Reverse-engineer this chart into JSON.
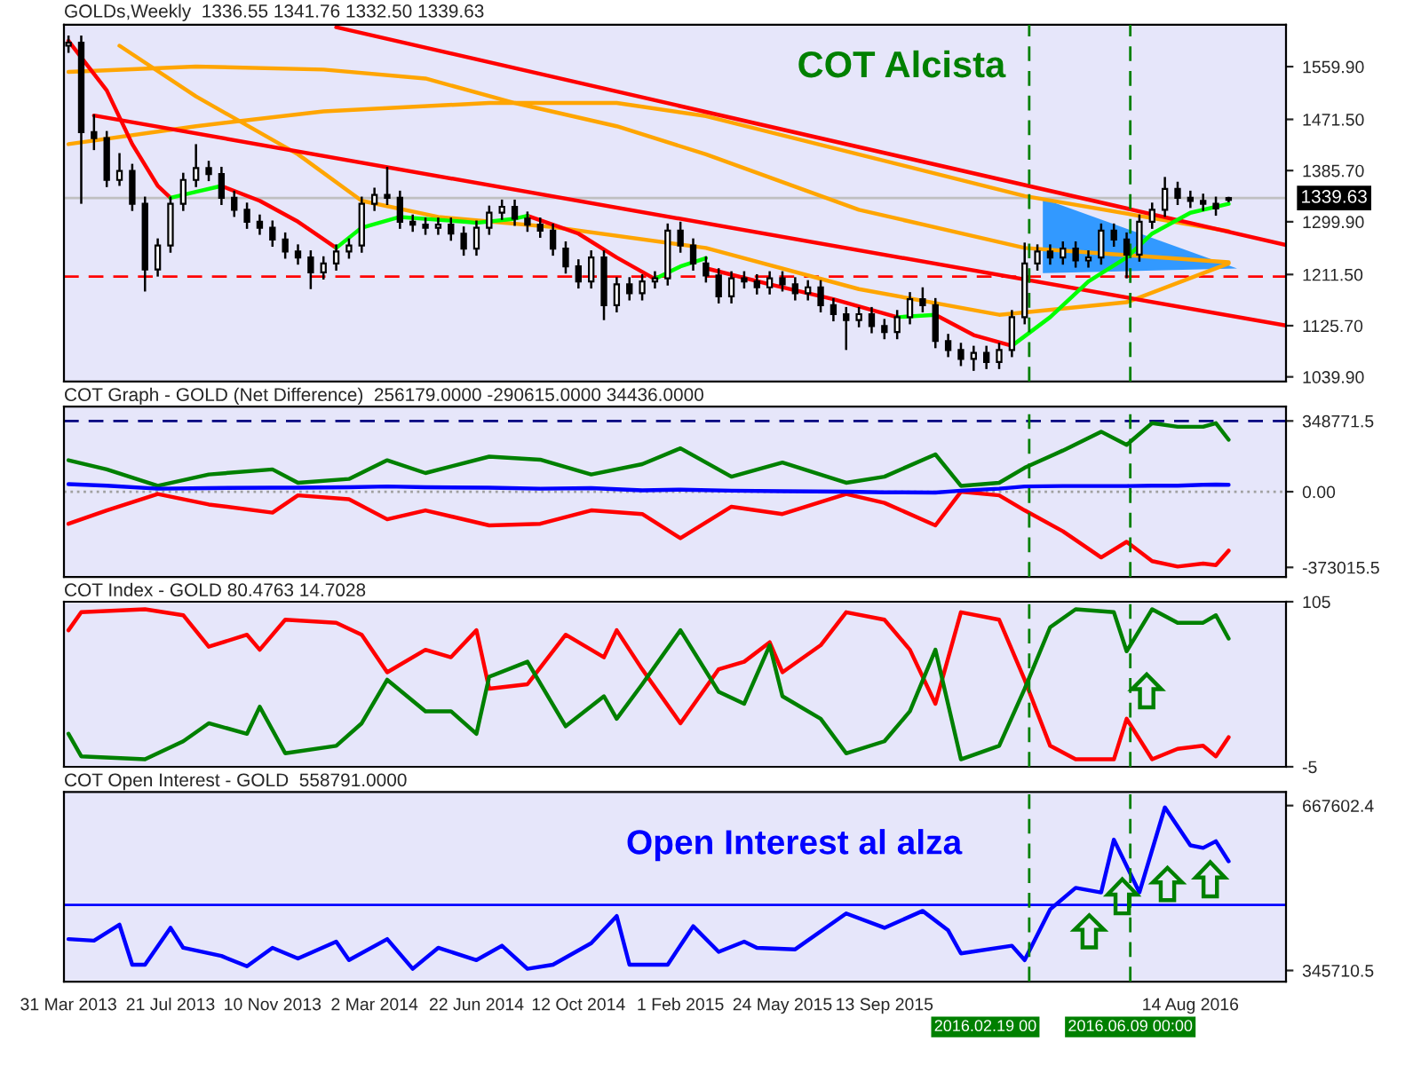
{
  "chart_data": [
    {
      "type": "candlestick",
      "title": "GOLDs,Weekly  1336.55 1341.76 1332.50 1339.63",
      "annotations": [
        "COT Alcista"
      ],
      "tick_labels": "y",
      "xlim": [
        "2013-03-26",
        "2016-11-27"
      ],
      "ylim": [
        1032,
        1630
      ],
      "yticks": [
        {
          "value": 1039.9,
          "label": "1039.90"
        },
        {
          "value": 1125.7,
          "label": "1125.70"
        },
        {
          "value": 1211.5,
          "label": "1211.50"
        },
        {
          "value": 1299.9,
          "label": "1299.90"
        },
        {
          "value": 1385.7,
          "label": "1385.70"
        },
        {
          "value": 1471.5,
          "label": "1471.50"
        },
        {
          "value": 1559.9,
          "label": "1559.90"
        }
      ],
      "x": [
        "2013-03-31",
        "2013-04-14",
        "2013-04-28",
        "2013-05-12",
        "2013-05-26",
        "2013-06-09",
        "2013-06-23",
        "2013-07-07",
        "2013-07-21",
        "2013-08-04",
        "2013-08-18",
        "2013-09-01",
        "2013-09-15",
        "2013-09-29",
        "2013-10-13",
        "2013-10-27",
        "2013-11-10",
        "2013-11-24",
        "2013-12-08",
        "2013-12-22",
        "2014-01-05",
        "2014-01-19",
        "2014-02-02",
        "2014-02-16",
        "2014-03-02",
        "2014-03-16",
        "2014-03-30",
        "2014-04-13",
        "2014-04-27",
        "2014-05-11",
        "2014-05-25",
        "2014-06-08",
        "2014-06-22",
        "2014-07-06",
        "2014-07-20",
        "2014-08-03",
        "2014-08-17",
        "2014-08-31",
        "2014-09-14",
        "2014-09-28",
        "2014-10-12",
        "2014-10-26",
        "2014-11-09",
        "2014-11-23",
        "2014-12-07",
        "2014-12-21",
        "2015-01-04",
        "2015-01-18",
        "2015-02-01",
        "2015-02-15",
        "2015-03-01",
        "2015-03-15",
        "2015-03-29",
        "2015-04-12",
        "2015-04-26",
        "2015-05-10",
        "2015-05-24",
        "2015-06-07",
        "2015-06-21",
        "2015-07-05",
        "2015-07-19",
        "2015-08-02",
        "2015-08-16",
        "2015-08-30",
        "2015-09-13",
        "2015-09-27",
        "2015-10-11",
        "2015-10-25",
        "2015-11-08",
        "2015-11-22",
        "2015-12-06",
        "2015-12-20",
        "2016-01-03",
        "2016-01-17",
        "2016-01-31",
        "2016-02-14",
        "2016-02-28",
        "2016-03-13",
        "2016-03-27",
        "2016-04-10",
        "2016-04-24",
        "2016-05-08",
        "2016-05-22",
        "2016-06-05",
        "2016-06-19",
        "2016-07-03",
        "2016-07-17",
        "2016-07-31",
        "2016-08-14",
        "2016-08-28",
        "2016-09-11",
        "2016-09-25"
      ],
      "ohlc": [
        [
          1595,
          1612,
          1583,
          1600
        ],
        [
          1600,
          1612,
          1330,
          1450
        ],
        [
          1450,
          1480,
          1420,
          1440
        ],
        [
          1440,
          1452,
          1358,
          1370
        ],
        [
          1370,
          1415,
          1360,
          1385
        ],
        [
          1385,
          1397,
          1318,
          1330
        ],
        [
          1330,
          1342,
          1183,
          1220
        ],
        [
          1220,
          1272,
          1208,
          1260
        ],
        [
          1260,
          1342,
          1248,
          1330
        ],
        [
          1330,
          1382,
          1318,
          1370
        ],
        [
          1370,
          1430,
          1358,
          1390
        ],
        [
          1390,
          1402,
          1368,
          1380
        ],
        [
          1380,
          1392,
          1328,
          1340
        ],
        [
          1340,
          1352,
          1308,
          1320
        ],
        [
          1320,
          1332,
          1288,
          1300
        ],
        [
          1300,
          1312,
          1278,
          1290
        ],
        [
          1290,
          1302,
          1258,
          1270
        ],
        [
          1270,
          1282,
          1238,
          1250
        ],
        [
          1250,
          1262,
          1228,
          1240
        ],
        [
          1240,
          1252,
          1187,
          1215
        ],
        [
          1215,
          1242,
          1203,
          1230
        ],
        [
          1230,
          1262,
          1218,
          1250
        ],
        [
          1250,
          1272,
          1238,
          1260
        ],
        [
          1260,
          1342,
          1248,
          1330
        ],
        [
          1330,
          1357,
          1318,
          1345
        ],
        [
          1345,
          1392,
          1328,
          1340
        ],
        [
          1340,
          1352,
          1288,
          1300
        ],
        [
          1300,
          1312,
          1283,
          1295
        ],
        [
          1295,
          1307,
          1278,
          1290
        ],
        [
          1290,
          1307,
          1278,
          1295
        ],
        [
          1295,
          1307,
          1268,
          1280
        ],
        [
          1280,
          1292,
          1243,
          1255
        ],
        [
          1255,
          1302,
          1243,
          1290
        ],
        [
          1290,
          1327,
          1278,
          1315
        ],
        [
          1315,
          1337,
          1303,
          1325
        ],
        [
          1325,
          1337,
          1293,
          1305
        ],
        [
          1305,
          1317,
          1283,
          1295
        ],
        [
          1295,
          1307,
          1273,
          1285
        ],
        [
          1285,
          1297,
          1243,
          1255
        ],
        [
          1255,
          1267,
          1213,
          1225
        ],
        [
          1225,
          1237,
          1188,
          1200
        ],
        [
          1200,
          1252,
          1188,
          1240
        ],
        [
          1240,
          1252,
          1135,
          1160
        ],
        [
          1160,
          1207,
          1148,
          1195
        ],
        [
          1195,
          1207,
          1168,
          1180
        ],
        [
          1180,
          1212,
          1168,
          1200
        ],
        [
          1200,
          1217,
          1188,
          1205
        ],
        [
          1205,
          1297,
          1193,
          1285
        ],
        [
          1285,
          1300,
          1248,
          1260
        ],
        [
          1260,
          1272,
          1218,
          1230
        ],
        [
          1230,
          1242,
          1198,
          1210
        ],
        [
          1210,
          1222,
          1163,
          1175
        ],
        [
          1175,
          1217,
          1163,
          1205
        ],
        [
          1205,
          1217,
          1188,
          1200
        ],
        [
          1200,
          1212,
          1178,
          1190
        ],
        [
          1190,
          1217,
          1178,
          1205
        ],
        [
          1205,
          1217,
          1183,
          1195
        ],
        [
          1195,
          1207,
          1168,
          1180
        ],
        [
          1180,
          1202,
          1168,
          1190
        ],
        [
          1190,
          1202,
          1148,
          1160
        ],
        [
          1160,
          1172,
          1133,
          1145
        ],
        [
          1145,
          1157,
          1085,
          1135
        ],
        [
          1135,
          1157,
          1123,
          1145
        ],
        [
          1145,
          1157,
          1113,
          1125
        ],
        [
          1125,
          1137,
          1103,
          1115
        ],
        [
          1115,
          1152,
          1103,
          1140
        ],
        [
          1140,
          1182,
          1128,
          1170
        ],
        [
          1170,
          1190,
          1148,
          1160
        ],
        [
          1160,
          1172,
          1088,
          1100
        ],
        [
          1100,
          1112,
          1073,
          1085
        ],
        [
          1085,
          1097,
          1058,
          1070
        ],
        [
          1070,
          1092,
          1050,
          1080
        ],
        [
          1080,
          1092,
          1053,
          1065
        ],
        [
          1065,
          1097,
          1053,
          1085
        ],
        [
          1085,
          1152,
          1073,
          1140
        ],
        [
          1140,
          1265,
          1128,
          1230
        ],
        [
          1230,
          1262,
          1218,
          1250
        ],
        [
          1250,
          1262,
          1228,
          1240
        ],
        [
          1240,
          1267,
          1228,
          1255
        ],
        [
          1255,
          1267,
          1223,
          1235
        ],
        [
          1235,
          1252,
          1223,
          1240
        ],
        [
          1240,
          1297,
          1228,
          1285
        ],
        [
          1285,
          1297,
          1258,
          1270
        ],
        [
          1270,
          1282,
          1205,
          1245
        ],
        [
          1245,
          1312,
          1233,
          1300
        ],
        [
          1300,
          1332,
          1288,
          1320
        ],
        [
          1320,
          1375,
          1308,
          1355
        ],
        [
          1355,
          1367,
          1328,
          1340
        ],
        [
          1340,
          1352,
          1323,
          1335
        ],
        [
          1335,
          1347,
          1318,
          1330
        ],
        [
          1330,
          1342,
          1310,
          1322
        ],
        [
          1336.55,
          1341.76,
          1332.5,
          1339.63
        ]
      ],
      "series": [
        {
          "type": "line",
          "color": "#ffa500",
          "x": [
            "2013-03-31",
            "2013-08-18",
            "2014-01-05",
            "2014-04-27",
            "2014-08-03",
            "2014-11-23",
            "2015-03-01",
            "2015-08-16",
            "2016-02-14",
            "2016-09-25"
          ],
          "values": [
            1551,
            1560,
            1555,
            1540,
            1499,
            1460,
            1413,
            1320,
            1256,
            1232
          ]
        },
        {
          "type": "line",
          "color": "#ffa500",
          "x": [
            "2013-03-31",
            "2013-08-18",
            "2014-01-05",
            "2014-07-06",
            "2014-11-23",
            "2015-03-01",
            "2016-02-14",
            "2016-09-25"
          ],
          "values": [
            1430,
            1460,
            1485,
            1499,
            1499,
            1477,
            1343,
            1284
          ]
        },
        {
          "type": "line",
          "color": "#ffa500",
          "x": [
            "2013-05-26",
            "2013-08-18",
            "2013-12-08",
            "2014-02-16",
            "2014-05-11",
            "2014-09-14",
            "2015-03-01",
            "2015-08-16",
            "2016-01-17",
            "2016-02-14",
            "2016-06-05",
            "2016-09-25"
          ],
          "values": [
            1595,
            1510,
            1413,
            1335,
            1308,
            1291,
            1256,
            1187,
            1144,
            1148,
            1165,
            1230
          ]
        },
        {
          "type": "line",
          "color": "#ff0000",
          "x": [
            "2014-01-19",
            "2016-11-27"
          ],
          "values": [
            1626,
            1261
          ]
        },
        {
          "type": "line",
          "color": "#ff0000",
          "x": [
            "2013-04-28",
            "2016-11-27"
          ],
          "values": [
            1478,
            1126
          ]
        },
        {
          "type": "line",
          "color": "#ff0000",
          "x": [
            "2013-03-31",
            "2013-05-12",
            "2013-06-09",
            "2013-07-07",
            "2013-07-21",
            "2013-08-04",
            "2013-09-15",
            "2013-10-27",
            "2013-12-08",
            "2014-01-19",
            "2014-02-02",
            "2014-08-17",
            "2014-10-12",
            "2014-11-23",
            "2015-01-04",
            "2015-01-18",
            "2015-03-01",
            "2015-05-10",
            "2015-07-19",
            "2015-09-27",
            "2015-10-11",
            "2015-11-08",
            "2015-12-20",
            "2016-01-31"
          ],
          "values": [
            1603,
            1520,
            1430,
            1360,
            1340,
            null,
            1360,
            1335,
            1300,
            1256,
            null,
            1310,
            1280,
            1240,
            1204,
            null,
            1222,
            1195,
            1170,
            1140,
            null,
            1144,
            1110,
            1092
          ]
        },
        {
          "type": "line",
          "color": "#00ff00",
          "x": [
            "2013-07-21",
            "2013-08-18",
            "2013-09-15",
            "2013-09-29",
            "2014-01-19",
            "2014-02-16",
            "2014-03-30",
            "2014-06-08",
            "2014-06-22",
            "2014-08-03",
            "2014-08-17",
            "2014-08-31",
            "2015-01-04",
            "2015-02-01",
            "2015-03-01",
            "2015-03-15",
            "2015-09-27",
            "2015-11-08",
            "2015-11-22",
            "2016-01-31",
            "2016-03-13",
            "2016-04-24",
            "2016-06-05",
            "2016-07-03",
            "2016-08-14",
            "2016-09-25"
          ],
          "values": [
            1340,
            1350,
            1360,
            null,
            1256,
            1290,
            1308,
            1300,
            1298,
            1305,
            1310,
            null,
            1204,
            1225,
            1239,
            null,
            1140,
            1144,
            null,
            1092,
            1140,
            1200,
            1240,
            1280,
            1315,
            1330
          ]
        }
      ],
      "ref_lines": [
        {
          "axis": "y",
          "value": 1208,
          "color": "#ff0000",
          "line_style": "dashed"
        },
        {
          "axis": "y",
          "value": 1339.63,
          "label": "1339.63",
          "color": "#c0c0c0"
        },
        {
          "axis": "x",
          "value": "2016-02-19",
          "color": "#008000",
          "line_style": "dashed"
        },
        {
          "axis": "x",
          "value": "2016-06-09",
          "color": "#008000",
          "line_style": "dashed"
        }
      ]
    },
    {
      "type": "line",
      "title": "COT Graph - GOLD (Net Difference)  256179.0000 -290615.0000 34436.0000",
      "tick_labels": "y",
      "xlim": [
        "2013-03-26",
        "2016-11-27"
      ],
      "ylim": [
        -420000,
        420000
      ],
      "yticks": [
        {
          "value": 348771.5,
          "label": "348771.5"
        },
        {
          "value": 0,
          "label": "0.00"
        },
        {
          "value": -373015.5,
          "label": "-373015.5"
        }
      ],
      "x": [
        "2013-03-31",
        "2013-05-12",
        "2013-07-07",
        "2013-09-01",
        "2013-11-10",
        "2013-12-08",
        "2014-02-02",
        "2014-03-16",
        "2014-04-27",
        "2014-07-06",
        "2014-08-31",
        "2014-10-26",
        "2014-12-21",
        "2015-02-01",
        "2015-03-29",
        "2015-05-24",
        "2015-08-02",
        "2015-09-13",
        "2015-11-08",
        "2015-12-06",
        "2016-01-17",
        "2016-02-14",
        "2016-03-27",
        "2016-05-08",
        "2016-06-05",
        "2016-07-03",
        "2016-07-31",
        "2016-08-28",
        "2016-09-11",
        "2016-09-25"
      ],
      "series": [
        {
          "color": "#008000",
          "values": [
            155000,
            110000,
            29000,
            85000,
            110000,
            44000,
            63000,
            155000,
            92000,
            173000,
            158000,
            85000,
            136000,
            214000,
            74000,
            144000,
            44000,
            74000,
            184000,
            29000,
            44000,
            118000,
            203000,
            296000,
            231000,
            338000,
            320000,
            320000,
            338000,
            256179
          ]
        },
        {
          "color": "#ff0000",
          "values": [
            -158000,
            -92000,
            -11000,
            -63000,
            -103000,
            -18000,
            -37000,
            -136000,
            -92000,
            -166000,
            -158000,
            -92000,
            -110000,
            -229000,
            -74000,
            -110000,
            -11000,
            -55000,
            -166000,
            0,
            -18000,
            -92000,
            -195000,
            -324000,
            -247000,
            -342000,
            -369000,
            -354000,
            -362000,
            -290615
          ]
        },
        {
          "color": "#0000ff",
          "values": [
            37000,
            30000,
            15000,
            18000,
            20000,
            20000,
            22000,
            26000,
            22000,
            20000,
            15000,
            18000,
            7000,
            10000,
            5000,
            2000,
            0,
            -3000,
            -4000,
            5000,
            15000,
            26000,
            28000,
            28000,
            28000,
            30000,
            30000,
            34000,
            35000,
            34436
          ]
        }
      ],
      "ref_lines": [
        {
          "axis": "y",
          "value": 348771.5,
          "color": "#000080",
          "line_style": "dashed"
        },
        {
          "axis": "y",
          "value": 0,
          "color": "#a0a0a0",
          "line_style": "dotted"
        },
        {
          "axis": "x",
          "value": "2016-02-19",
          "color": "#008000",
          "line_style": "dashed"
        },
        {
          "axis": "x",
          "value": "2016-06-09",
          "color": "#008000",
          "line_style": "dashed"
        }
      ]
    },
    {
      "type": "line",
      "title": "COT Index - GOLD 80.4763 14.7028",
      "tick_labels": "y",
      "xlim": [
        "2013-03-26",
        "2016-11-27"
      ],
      "ylim": [
        -5,
        105
      ],
      "yticks": [
        105,
        -5
      ],
      "x": [
        "2013-03-31",
        "2013-04-14",
        "2013-06-23",
        "2013-08-04",
        "2013-09-01",
        "2013-10-13",
        "2013-10-27",
        "2013-11-24",
        "2014-01-19",
        "2014-02-16",
        "2014-03-16",
        "2014-04-27",
        "2014-05-25",
        "2014-06-22",
        "2014-07-06",
        "2014-08-17",
        "2014-09-28",
        "2014-11-09",
        "2014-11-23",
        "2014-12-21",
        "2015-02-01",
        "2015-03-15",
        "2015-04-12",
        "2015-05-10",
        "2015-05-24",
        "2015-07-05",
        "2015-08-02",
        "2015-09-13",
        "2015-10-11",
        "2015-11-08",
        "2015-12-06",
        "2016-01-17",
        "2016-02-14",
        "2016-03-13",
        "2016-04-10",
        "2016-05-22",
        "2016-06-05",
        "2016-07-03",
        "2016-07-31",
        "2016-08-28",
        "2016-09-11",
        "2016-09-25"
      ],
      "series": [
        {
          "color": "#ff0000",
          "values": [
            86,
            98,
            100,
            96,
            75,
            83,
            73,
            93,
            91,
            83,
            58,
            73,
            68,
            86,
            47,
            50,
            83,
            68,
            86,
            60,
            24,
            60,
            65,
            78,
            58,
            76,
            98,
            93,
            73,
            37,
            98,
            93,
            53,
            9,
            0,
            0,
            27,
            0,
            7,
            9,
            2,
            14.7028
          ]
        },
        {
          "color": "#008000",
          "values": [
            17,
            2,
            0,
            12,
            24,
            17,
            35,
            4,
            9,
            24,
            53,
            32,
            32,
            17,
            55,
            65,
            22,
            42,
            27,
            50,
            86,
            45,
            37,
            76,
            42,
            27,
            4,
            12,
            32,
            73,
            0,
            9,
            47,
            88,
            100,
            98,
            72,
            100,
            91,
            91,
            96,
            80.4763
          ]
        }
      ],
      "ref_lines": [
        {
          "axis": "x",
          "value": "2016-02-19",
          "color": "#008000",
          "line_style": "dashed"
        },
        {
          "axis": "x",
          "value": "2016-06-09",
          "color": "#008000",
          "line_style": "dashed"
        }
      ]
    },
    {
      "type": "line",
      "title": "COT Open Interest - GOLD  558791.0000",
      "annotations": [
        "Open Interest al alza"
      ],
      "xlim": [
        "2013-03-26",
        "2016-11-27"
      ],
      "ylim": [
        324000,
        694000
      ],
      "yticks": [
        {
          "value": 667602.4,
          "label": "667602.4"
        },
        {
          "value": 345710.5,
          "label": "345710.5"
        }
      ],
      "xticks": [
        {
          "value": "2013-03-31",
          "label": "31 Mar 2013"
        },
        {
          "value": "2013-07-21",
          "label": "21 Jul 2013"
        },
        {
          "value": "2013-11-10",
          "label": "10 Nov 2013"
        },
        {
          "value": "2014-03-02",
          "label": "2 Mar 2014"
        },
        {
          "value": "2014-06-22",
          "label": "22 Jun 2014"
        },
        {
          "value": "2014-10-12",
          "label": "12 Oct 2014"
        },
        {
          "value": "2015-02-01",
          "label": "1 Feb 2015"
        },
        {
          "value": "2015-05-24",
          "label": "24 May 2015"
        },
        {
          "value": "2015-09-13",
          "label": "13 Sep 2015"
        },
        {
          "value": "2016-08-14",
          "label": "14 Aug 2016"
        }
      ],
      "x": [
        "2013-03-31",
        "2013-04-28",
        "2013-05-26",
        "2013-06-09",
        "2013-06-23",
        "2013-07-21",
        "2013-08-04",
        "2013-09-15",
        "2013-10-13",
        "2013-11-10",
        "2013-12-08",
        "2014-01-19",
        "2014-02-02",
        "2014-03-16",
        "2014-04-13",
        "2014-05-11",
        "2014-06-22",
        "2014-07-20",
        "2014-08-17",
        "2014-09-14",
        "2014-10-26",
        "2014-11-23",
        "2014-12-07",
        "2015-01-18",
        "2015-02-15",
        "2015-03-15",
        "2015-04-12",
        "2015-04-26",
        "2015-06-07",
        "2015-08-02",
        "2015-09-13",
        "2015-10-25",
        "2015-11-22",
        "2015-12-06",
        "2016-01-31",
        "2016-02-14",
        "2016-03-13",
        "2016-04-10",
        "2016-05-08",
        "2016-05-22",
        "2016-06-19",
        "2016-07-17",
        "2016-08-14",
        "2016-08-28",
        "2016-09-11",
        "2016-09-25"
      ],
      "series": [
        {
          "color": "#0000ff",
          "values": [
            407000,
            404000,
            435000,
            357000,
            357000,
            429000,
            390000,
            374000,
            354000,
            390000,
            369000,
            402000,
            366000,
            407000,
            349000,
            390000,
            366000,
            394000,
            349000,
            357000,
            399000,
            452000,
            357000,
            357000,
            432000,
            382000,
            402000,
            390000,
            387000,
            457000,
            429000,
            462000,
            424000,
            379000,
            394000,
            366000,
            465000,
            507000,
            498000,
            601000,
            498000,
            664000,
            590000,
            585000,
            598000,
            558791
          ]
        }
      ],
      "ref_lines": [
        {
          "axis": "y",
          "value": 473500,
          "color": "#0000ff"
        },
        {
          "axis": "x",
          "value": "2016-02-19",
          "label": "2016.02.19 00",
          "color": "#008000",
          "line_style": "dashed"
        },
        {
          "axis": "x",
          "value": "2016-06-09",
          "label": "2016.06.09 00:00",
          "color": "#008000",
          "line_style": "dashed"
        }
      ]
    }
  ]
}
